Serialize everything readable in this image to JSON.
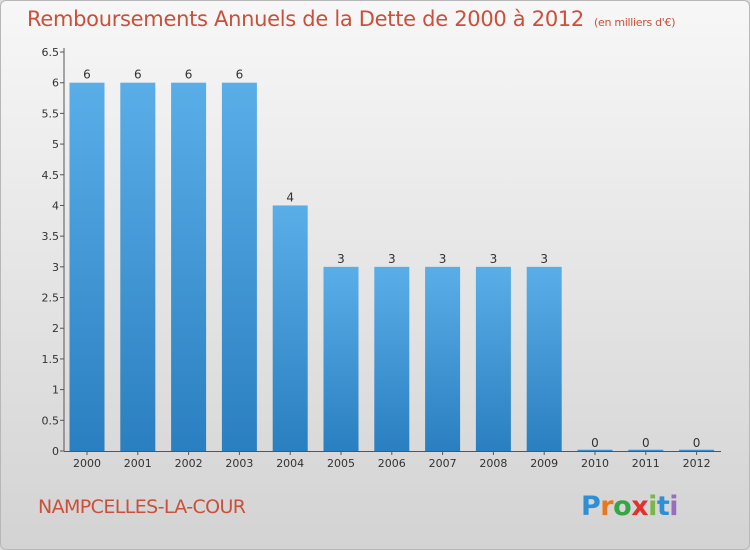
{
  "chart_data": {
    "type": "bar",
    "title": "Remboursements Annuels de la Dette de 2000 à 2012",
    "unit": "(en milliers d'€)",
    "categories": [
      "2000",
      "2001",
      "2002",
      "2003",
      "2004",
      "2005",
      "2006",
      "2007",
      "2008",
      "2009",
      "2010",
      "2011",
      "2012"
    ],
    "values": [
      6,
      6,
      6,
      6,
      4,
      3,
      3,
      3,
      3,
      3,
      0,
      0,
      0
    ],
    "data_labels": [
      "6",
      "6",
      "6",
      "6",
      "4",
      "3",
      "3",
      "3",
      "3",
      "3",
      "0",
      "0",
      "0"
    ],
    "ylim": [
      0,
      6.5
    ],
    "yticks": [
      {
        "value": 0,
        "label": "0"
      },
      {
        "value": 0.5,
        "label": "0.5"
      },
      {
        "value": 1,
        "label": "1"
      },
      {
        "value": 1.5,
        "label": "1.5"
      },
      {
        "value": 2,
        "label": "2"
      },
      {
        "value": 2.5,
        "label": "2.5"
      },
      {
        "value": 3,
        "label": "3"
      },
      {
        "value": 3.5,
        "label": "3.5"
      },
      {
        "value": 4,
        "label": "4"
      },
      {
        "value": 4.5,
        "label": "4.5"
      },
      {
        "value": 5,
        "label": "5"
      },
      {
        "value": 5.5,
        "label": "5.5"
      },
      {
        "value": 6,
        "label": "6"
      },
      {
        "value": 6.5,
        "label": "6.5"
      }
    ],
    "grid": false,
    "bar_color": "#4a9fdd"
  },
  "footer": {
    "town": "NAMPCELLES-LA-COUR",
    "logo": "Proxiti"
  }
}
